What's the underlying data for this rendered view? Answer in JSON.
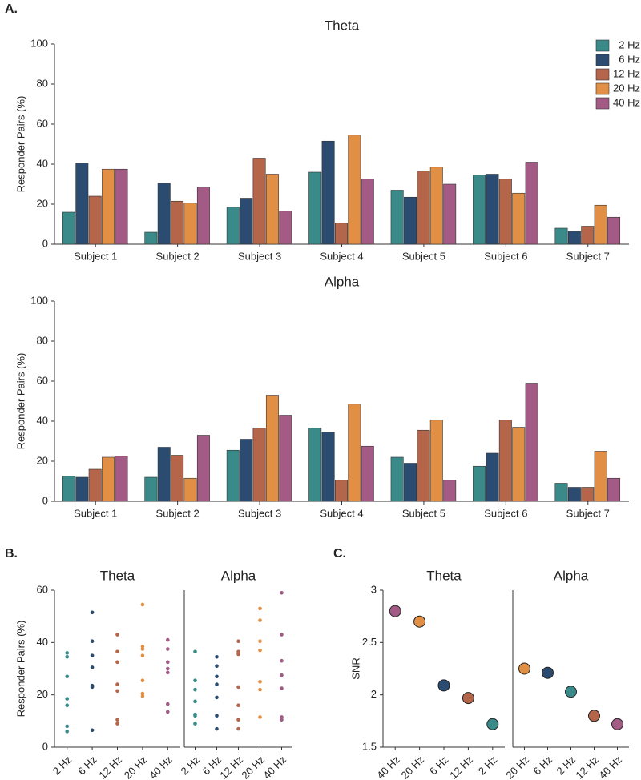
{
  "panel_labels": [
    "A.",
    "B.",
    "C."
  ],
  "chart_data": [
    {
      "type": "bar",
      "title": "Theta",
      "ylabel": "Responder Pairs (%)",
      "categories": [
        "Subject 1",
        "Subject 2",
        "Subject 3",
        "Subject 4",
        "Subject 5",
        "Subject 6",
        "Subject 7"
      ],
      "series": [
        {
          "name": "2 Hz",
          "color": "#3a8a8a",
          "values": [
            16,
            6,
            18.5,
            36,
            27,
            34.5,
            8
          ]
        },
        {
          "name": "6 Hz",
          "color": "#2b4b70",
          "values": [
            40.5,
            30.5,
            23,
            51.5,
            23.5,
            35,
            6.5
          ]
        },
        {
          "name": "12 Hz",
          "color": "#b5654a",
          "values": [
            24,
            21.5,
            43,
            10.5,
            36.5,
            32.5,
            9
          ]
        },
        {
          "name": "20 Hz",
          "color": "#e08f45",
          "values": [
            37.5,
            20.5,
            35,
            54.5,
            38.5,
            25.5,
            19.5
          ]
        },
        {
          "name": "40 Hz",
          "color": "#a35b86",
          "values": [
            37.5,
            28.5,
            16.5,
            32.5,
            30,
            41,
            13.5
          ]
        }
      ],
      "ylim": [
        0,
        100
      ],
      "yticks": [
        0,
        20,
        40,
        60,
        80,
        100
      ],
      "legend": "upper right"
    },
    {
      "type": "bar",
      "title": "Alpha",
      "ylabel": "Responder Pairs (%)",
      "categories": [
        "Subject 1",
        "Subject 2",
        "Subject 3",
        "Subject 4",
        "Subject 5",
        "Subject 6",
        "Subject 7"
      ],
      "series": [
        {
          "name": "2 Hz",
          "color": "#3a8a8a",
          "values": [
            12.5,
            12,
            25.5,
            36.5,
            22,
            17.5,
            9
          ]
        },
        {
          "name": "6 Hz",
          "color": "#2b4b70",
          "values": [
            12,
            27,
            31,
            34.5,
            19,
            24,
            7
          ]
        },
        {
          "name": "12 Hz",
          "color": "#b5654a",
          "values": [
            16,
            23,
            36.5,
            10.5,
            35.5,
            40.5,
            7
          ]
        },
        {
          "name": "20 Hz",
          "color": "#e08f45",
          "values": [
            22,
            11.5,
            53,
            48.5,
            40.5,
            37,
            25
          ]
        },
        {
          "name": "40 Hz",
          "color": "#a35b86",
          "values": [
            22.5,
            33,
            43,
            27.5,
            10.5,
            59,
            11.5
          ]
        }
      ],
      "ylim": [
        0,
        100
      ],
      "yticks": [
        0,
        20,
        40,
        60,
        80,
        100
      ]
    },
    {
      "type": "strip",
      "title": "Theta",
      "ylabel": "Responder Pairs (%)",
      "series": [
        {
          "name": "2 Hz",
          "color": "#3a8a8a",
          "values": [
            16,
            6,
            18.5,
            36,
            27,
            34.5,
            8
          ]
        },
        {
          "name": "6 Hz",
          "color": "#2b4b70",
          "values": [
            40.5,
            30.5,
            23,
            51.5,
            23.5,
            35,
            6.5
          ]
        },
        {
          "name": "12 Hz",
          "color": "#b5654a",
          "values": [
            24,
            21.5,
            43,
            10.5,
            36.5,
            32.5,
            9
          ]
        },
        {
          "name": "20 Hz",
          "color": "#e08f45",
          "values": [
            37.5,
            20.5,
            35,
            54.5,
            38.5,
            25.5,
            19.5
          ]
        },
        {
          "name": "40 Hz",
          "color": "#a35b86",
          "values": [
            37.5,
            28.5,
            16.5,
            32.5,
            30,
            41,
            13.5
          ]
        }
      ],
      "ylim": [
        0,
        60
      ],
      "yticks": [
        0,
        20,
        40,
        60
      ]
    },
    {
      "type": "strip",
      "title": "Alpha",
      "series": [
        {
          "name": "2 Hz",
          "color": "#3a8a8a",
          "values": [
            12.5,
            12,
            25.5,
            36.5,
            22,
            17.5,
            9
          ]
        },
        {
          "name": "6 Hz",
          "color": "#2b4b70",
          "values": [
            12,
            27,
            31,
            34.5,
            19,
            24,
            7
          ]
        },
        {
          "name": "12 Hz",
          "color": "#b5654a",
          "values": [
            16,
            23,
            36.5,
            10.5,
            35.5,
            40.5,
            7
          ]
        },
        {
          "name": "20 Hz",
          "color": "#e08f45",
          "values": [
            22,
            11.5,
            53,
            48.5,
            40.5,
            37,
            25
          ]
        },
        {
          "name": "40 Hz",
          "color": "#a35b86",
          "values": [
            22.5,
            33,
            43,
            27.5,
            10.5,
            59,
            11.5
          ]
        }
      ],
      "ylim": [
        0,
        60
      ]
    },
    {
      "type": "scatter",
      "title": "Theta",
      "ylabel": "SNR",
      "categories": [
        "40 Hz",
        "20 Hz",
        "6 Hz",
        "12 Hz",
        "2 Hz"
      ],
      "values": [
        2.8,
        2.7,
        2.09,
        1.97,
        1.72
      ],
      "colors": [
        "#a35b86",
        "#e08f45",
        "#2b4b70",
        "#b5654a",
        "#3a8a8a"
      ],
      "ylim": [
        1.5,
        3
      ],
      "yticks": [
        1.5,
        2,
        2.5,
        3
      ]
    },
    {
      "type": "scatter",
      "title": "Alpha",
      "categories": [
        "20 Hz",
        "6 Hz",
        "2 Hz",
        "12 Hz",
        "40 Hz"
      ],
      "values": [
        2.25,
        2.21,
        2.03,
        1.8,
        1.72
      ],
      "colors": [
        "#e08f45",
        "#2b4b70",
        "#3a8a8a",
        "#b5654a",
        "#a35b86"
      ],
      "ylim": [
        1.5,
        3
      ]
    }
  ]
}
